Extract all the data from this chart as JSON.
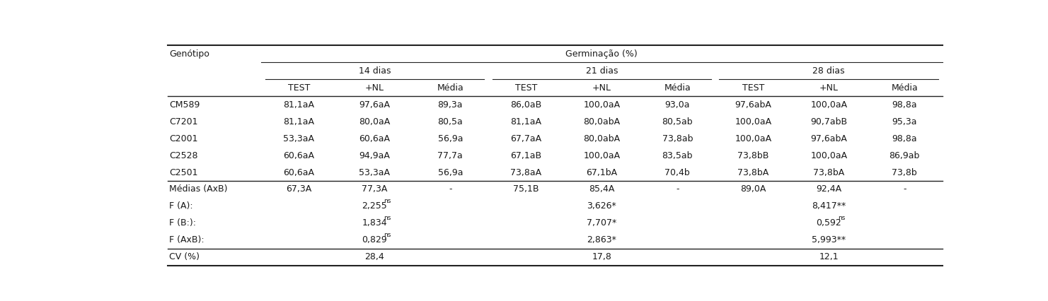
{
  "genotype_header": "Genótipo",
  "germ_header": "Germinação (%)",
  "period_headers": [
    "14 dias",
    "21 dias",
    "28 dias"
  ],
  "sub_headers": [
    "TEST",
    "+NL",
    "Média"
  ],
  "data_rows": [
    [
      "CM589",
      "81,1aA",
      "97,6aA",
      "89,3a",
      "86,0aB",
      "100,0aA",
      "93,0a",
      "97,6abA",
      "100,0aA",
      "98,8a"
    ],
    [
      "C7201",
      "81,1aA",
      "80,0aA",
      "80,5a",
      "81,1aA",
      "80,0abA",
      "80,5ab",
      "100,0aA",
      "90,7abB",
      "95,3a"
    ],
    [
      "C2001",
      "53,3aA",
      "60,6aA",
      "56,9a",
      "67,7aA",
      "80,0abA",
      "73,8ab",
      "100,0aA",
      "97,6abA",
      "98,8a"
    ],
    [
      "C2528",
      "60,6aA",
      "94,9aA",
      "77,7a",
      "67,1aB",
      "100,0aA",
      "83,5ab",
      "73,8bB",
      "100,0aA",
      "86,9ab"
    ],
    [
      "C2501",
      "60,6aA",
      "53,3aA",
      "56,9a",
      "73,8aA",
      "67,1bA",
      "70,4b",
      "73,8bA",
      "73,8bA",
      "73,8b"
    ]
  ],
  "medias_row": [
    "Médias (AxB)",
    "67,3A",
    "77,3A",
    "-",
    "75,1B",
    "85,4A",
    "-",
    "89,0A",
    "92,4A",
    "-"
  ],
  "f_rows": [
    [
      "F (A):",
      "2,255",
      "ns",
      "3,626*",
      "",
      "8,417**",
      ""
    ],
    [
      "F (B:):",
      "1,834",
      "ns",
      "7,707*",
      "",
      "0,592",
      "ns"
    ],
    [
      "F (AxB):",
      "0,829",
      "ns",
      "2,863*",
      "",
      "5,993**",
      ""
    ]
  ],
  "cv_row": [
    "CV (%)",
    "28,4",
    "17,8",
    "12,1"
  ],
  "background_color": "#ffffff",
  "text_color": "#1a1a1a",
  "font_size": 9.0,
  "sup_font_size": 6.5
}
